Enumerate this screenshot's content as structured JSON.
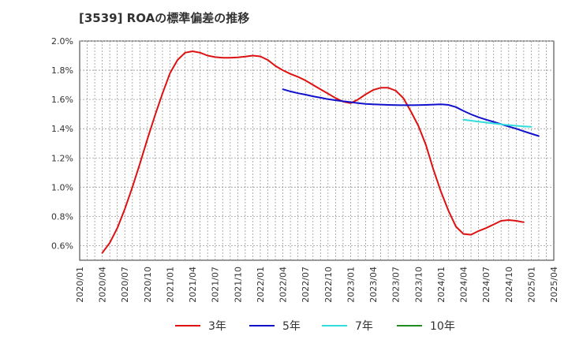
{
  "chart_data": {
    "type": "line",
    "title": "[3539]  ROAの標準偏差の推移",
    "xlabel": "",
    "ylabel": "",
    "ylim": [
      0.5,
      2.0
    ],
    "y_ticks": [
      "0.6%",
      "0.8%",
      "1.0%",
      "1.2%",
      "1.4%",
      "1.6%",
      "1.8%",
      "2.0%"
    ],
    "y_tick_values": [
      0.6,
      0.8,
      1.0,
      1.2,
      1.4,
      1.6,
      1.8,
      2.0
    ],
    "x_start": "2020-01",
    "x_end": "2025-04",
    "x_ticks": [
      "2020/01",
      "2020/04",
      "2020/07",
      "2020/10",
      "2021/01",
      "2021/04",
      "2021/07",
      "2021/10",
      "2022/01",
      "2022/04",
      "2022/07",
      "2022/10",
      "2023/01",
      "2023/04",
      "2023/07",
      "2023/10",
      "2024/01",
      "2024/04",
      "2024/07",
      "2024/10",
      "2025/01",
      "2025/04"
    ],
    "grid": true,
    "legend_position": "bottom",
    "series": [
      {
        "name": "3年",
        "color": "#dd1111",
        "start": "2020-04",
        "values": [
          0.55,
          0.62,
          0.72,
          0.85,
          1.0,
          1.16,
          1.33,
          1.49,
          1.64,
          1.78,
          1.87,
          1.92,
          1.93,
          1.92,
          1.9,
          1.89,
          1.885,
          1.885,
          1.888,
          1.893,
          1.9,
          1.895,
          1.87,
          1.83,
          1.8,
          1.775,
          1.755,
          1.73,
          1.7,
          1.67,
          1.64,
          1.61,
          1.585,
          1.575,
          1.6,
          1.635,
          1.665,
          1.68,
          1.68,
          1.66,
          1.61,
          1.52,
          1.42,
          1.29,
          1.12,
          0.97,
          0.84,
          0.73,
          0.68,
          0.675,
          0.7,
          0.72,
          0.745,
          0.77,
          0.775,
          0.77,
          0.76
        ]
      },
      {
        "name": "5年",
        "color": "#1111cc",
        "start": "2022-04",
        "values": [
          1.67,
          1.655,
          1.643,
          1.633,
          1.622,
          1.612,
          1.602,
          1.595,
          1.588,
          1.582,
          1.575,
          1.57,
          1.567,
          1.565,
          1.563,
          1.562,
          1.561,
          1.561,
          1.562,
          1.563,
          1.565,
          1.567,
          1.563,
          1.548,
          1.522,
          1.498,
          1.478,
          1.462,
          1.447,
          1.431,
          1.415,
          1.4,
          1.383,
          1.366,
          1.35
        ]
      },
      {
        "name": "7年",
        "color": "#33dddd",
        "start": "2024-04",
        "values": [
          1.462,
          1.455,
          1.448,
          1.442,
          1.436,
          1.43,
          1.425,
          1.42,
          1.416,
          1.413
        ]
      },
      {
        "name": "10年",
        "color": "#228b22",
        "start": "",
        "values": []
      }
    ]
  }
}
